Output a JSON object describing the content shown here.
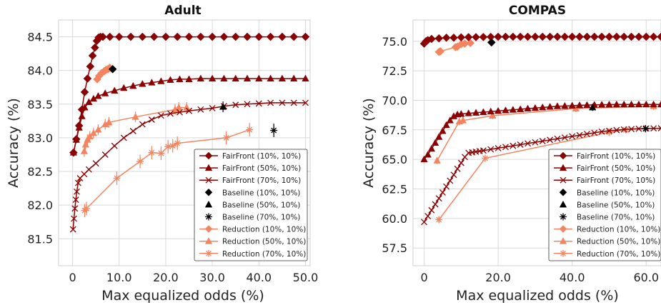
{
  "colors": {
    "fairfront_10": "#8b0000",
    "fairfront_50": "#8b0000",
    "fairfront_70": "#8b0000",
    "baseline": "#000000",
    "reduction": "#f4845f"
  },
  "legend_labels": [
    "FairFront (10%, 10%)",
    "FairFront (50%, 10%)",
    "FairFront (70%, 10%)",
    "Baseline (10%, 10%)",
    "Baseline (50%, 10%)",
    "Baseline (70%, 10%)",
    "Reduction (10%, 10%)",
    "Reduction (50%, 10%)",
    "Reduction (70%, 10%)"
  ],
  "chart_data": [
    {
      "type": "line",
      "title": "Adult",
      "xlabel": "Max equalized odds (%)",
      "ylabel": "Accuracy (%)",
      "xlim": [
        -3,
        51
      ],
      "ylim": [
        81.1,
        84.75
      ],
      "xticks": [
        0,
        10,
        20,
        30,
        40,
        50
      ],
      "xtick_labels": [
        "0",
        "10.0",
        "20.0",
        "30.0",
        "40.0",
        "50.0"
      ],
      "yticks": [
        81.5,
        82.0,
        82.5,
        83.0,
        83.5,
        84.0,
        84.5
      ],
      "ytick_labels": [
        "81.5",
        "82.0",
        "82.5",
        "83.0",
        "83.5",
        "84.0",
        "84.5"
      ],
      "legend": "lower-right",
      "grid": true,
      "series": [
        {
          "name": "FairFront (10%, 10%)",
          "marker": "diamond",
          "x": [
            0.2,
            0.8,
            1.4,
            2.0,
            2.6,
            3.2,
            3.8,
            4.3,
            4.8,
            5.2,
            5.6,
            6.0,
            6.5,
            8,
            10,
            12.5,
            15,
            17.5,
            20,
            22.5,
            25,
            27.5,
            30,
            32.5,
            35,
            37.5,
            40,
            42.5,
            45,
            47.5,
            50
          ],
          "y": [
            82.78,
            82.98,
            83.18,
            83.42,
            83.68,
            83.88,
            84.06,
            84.22,
            84.34,
            84.44,
            84.49,
            84.5,
            84.5,
            84.5,
            84.5,
            84.5,
            84.5,
            84.5,
            84.5,
            84.5,
            84.5,
            84.5,
            84.5,
            84.5,
            84.5,
            84.5,
            84.5,
            84.5,
            84.5,
            84.5,
            84.5
          ]
        },
        {
          "name": "FairFront (50%, 10%)",
          "marker": "triangle",
          "x": [
            0.2,
            0.8,
            1.4,
            2.0,
            2.6,
            3.5,
            4.5,
            5.5,
            7,
            9,
            11,
            13,
            15,
            17,
            19,
            21,
            23,
            25,
            27.5,
            30,
            32.5,
            35,
            37.5,
            40,
            42.5,
            45,
            47.5,
            50
          ],
          "y": [
            82.78,
            82.97,
            83.15,
            83.32,
            83.45,
            83.53,
            83.58,
            83.62,
            83.66,
            83.7,
            83.74,
            83.77,
            83.8,
            83.82,
            83.84,
            83.86,
            83.87,
            83.87,
            83.88,
            83.88,
            83.88,
            83.88,
            83.88,
            83.88,
            83.88,
            83.88,
            83.88,
            83.88
          ]
        },
        {
          "name": "FairFront (70%, 10%)",
          "marker": "x",
          "x": [
            0.1,
            0.3,
            0.5,
            0.7,
            0.9,
            1.2,
            1.6,
            2.5,
            3.5,
            5,
            7,
            9,
            11,
            13,
            15,
            17,
            19,
            21,
            23,
            25,
            27.5,
            30,
            32.5,
            35,
            37.5,
            40,
            42.5,
            45,
            47.5,
            50
          ],
          "y": [
            81.64,
            81.8,
            81.95,
            82.08,
            82.2,
            82.33,
            82.4,
            82.46,
            82.53,
            82.62,
            82.75,
            82.88,
            83.0,
            83.1,
            83.2,
            83.27,
            83.33,
            83.36,
            83.38,
            83.4,
            83.42,
            83.44,
            83.47,
            83.49,
            83.5,
            83.51,
            83.52,
            83.52,
            83.52,
            83.52
          ]
        },
        {
          "name": "Baseline (10%, 10%)",
          "marker": "diamond",
          "x": [
            8.6
          ],
          "y": [
            84.02
          ],
          "yerr": 0.05
        },
        {
          "name": "Baseline (50%, 10%)",
          "marker": "triangle",
          "x": [
            32.3
          ],
          "y": [
            83.46
          ],
          "yerr": 0.08
        },
        {
          "name": "Baseline (70%, 10%)",
          "marker": "star",
          "x": [
            43.2
          ],
          "y": [
            83.11
          ],
          "yerr": 0.1
        },
        {
          "name": "Reduction (10%, 10%)",
          "marker": "diamond",
          "x": [
            5.3,
            5.7,
            6.2,
            6.8,
            7.2,
            7.6,
            8.0
          ],
          "y": [
            83.87,
            83.92,
            83.96,
            83.99,
            84.01,
            84.02,
            84.04
          ],
          "yerr": 0.06
        },
        {
          "name": "Reduction (50%, 10%)",
          "marker": "triangle",
          "x": [
            2.5,
            2.8,
            3.2,
            3.7,
            4.5,
            5.5,
            7.0,
            7.8,
            13.5,
            22.0,
            22.8,
            24.5
          ],
          "y": [
            82.8,
            82.9,
            82.97,
            83.02,
            83.07,
            83.12,
            83.2,
            83.23,
            83.31,
            83.42,
            83.45,
            83.45
          ],
          "yerr": 0.08
        },
        {
          "name": "Reduction (70%, 10%)",
          "marker": "star",
          "x": [
            2.6,
            3.0,
            9.5,
            14.5,
            17.0,
            19.0,
            20.5,
            21.5,
            22.5,
            33.0,
            38.0
          ],
          "y": [
            81.92,
            81.95,
            82.4,
            82.65,
            82.78,
            82.77,
            82.87,
            82.88,
            82.92,
            83.0,
            83.12
          ],
          "yerr": 0.1
        }
      ]
    },
    {
      "type": "line",
      "title": "COMPAS",
      "xlabel": "Max equalized odds (%)",
      "ylabel": "Accuracy (%)",
      "xlim": [
        -3,
        64
      ],
      "ylim": [
        56.0,
        76.8
      ],
      "xticks": [
        0,
        20,
        40,
        60
      ],
      "xtick_labels": [
        "0",
        "20.0",
        "40.0",
        "60.0"
      ],
      "yticks": [
        57.5,
        60.0,
        62.5,
        65.0,
        67.5,
        70.0,
        72.5,
        75.0
      ],
      "ytick_labels": [
        "57.5",
        "60.0",
        "62.5",
        "65.0",
        "67.5",
        "70.0",
        "72.5",
        "75.0"
      ],
      "legend": "lower-right",
      "grid": true,
      "series": [
        {
          "name": "FairFront (10%, 10%)",
          "marker": "diamond",
          "x": [
            0,
            0.5,
            1,
            2,
            4,
            6,
            8,
            10,
            12,
            14,
            16,
            18,
            20,
            22,
            24,
            26,
            28,
            30,
            32,
            34,
            36,
            38,
            40,
            42,
            44,
            46,
            48,
            50,
            52,
            54,
            56,
            58,
            60,
            62,
            64
          ],
          "y": [
            74.8,
            75.0,
            75.1,
            75.2,
            75.25,
            75.3,
            75.3,
            75.33,
            75.35,
            75.35,
            75.36,
            75.37,
            75.38,
            75.38,
            75.38,
            75.38,
            75.38,
            75.38,
            75.38,
            75.38,
            75.38,
            75.38,
            75.38,
            75.38,
            75.38,
            75.38,
            75.38,
            75.38,
            75.38,
            75.38,
            75.38,
            75.38,
            75.38,
            75.38,
            75.38
          ]
        },
        {
          "name": "FairFront (50%, 10%)",
          "marker": "triangle",
          "x": [
            0,
            1,
            2,
            3,
            4,
            5,
            6,
            7,
            8,
            9,
            10,
            12,
            14,
            16,
            18,
            20,
            22,
            24,
            26,
            28,
            30,
            32,
            34,
            36,
            38,
            40,
            42,
            44,
            46,
            48,
            50,
            52,
            54,
            56,
            58,
            60,
            62,
            64
          ],
          "y": [
            65.0,
            65.4,
            65.9,
            66.4,
            66.9,
            67.4,
            67.9,
            68.3,
            68.65,
            68.8,
            68.85,
            68.9,
            68.95,
            69.0,
            69.05,
            69.1,
            69.15,
            69.2,
            69.25,
            69.3,
            69.35,
            69.4,
            69.45,
            69.5,
            69.52,
            69.55,
            69.58,
            69.6,
            69.62,
            69.63,
            69.64,
            69.65,
            69.65,
            69.65,
            69.65,
            69.65,
            69.65,
            69.65
          ]
        },
        {
          "name": "FairFront (70%, 10%)",
          "marker": "x",
          "x": [
            0,
            1,
            2,
            3,
            4,
            5,
            6,
            7,
            8,
            9,
            10,
            11,
            12,
            13,
            14,
            15,
            16,
            18,
            20,
            22,
            24,
            26,
            28,
            30,
            32,
            34,
            36,
            38,
            40,
            42,
            44,
            46,
            48,
            50,
            52,
            54,
            56,
            58,
            60,
            62,
            64
          ],
          "y": [
            59.7,
            60.2,
            60.7,
            61.2,
            61.7,
            62.2,
            62.7,
            63.2,
            63.7,
            64.2,
            64.7,
            65.2,
            65.55,
            65.6,
            65.65,
            65.7,
            65.75,
            65.85,
            65.95,
            66.05,
            66.15,
            66.25,
            66.35,
            66.45,
            66.55,
            66.65,
            66.75,
            66.85,
            66.95,
            67.05,
            67.15,
            67.25,
            67.35,
            67.42,
            67.48,
            67.53,
            67.57,
            67.6,
            67.62,
            67.63,
            67.64
          ]
        },
        {
          "name": "Baseline (10%, 10%)",
          "marker": "diamond",
          "x": [
            18.2
          ],
          "y": [
            74.9
          ],
          "yerr": 0.2
        },
        {
          "name": "Baseline (50%, 10%)",
          "marker": "triangle",
          "x": [
            45.5
          ],
          "y": [
            69.4
          ],
          "yerr": 0.3
        },
        {
          "name": "Baseline (70%, 10%)",
          "marker": "star",
          "x": [
            59.8
          ],
          "y": [
            67.6
          ],
          "yerr": 0.3
        },
        {
          "name": "Reduction (10%, 10%)",
          "marker": "diamond",
          "x": [
            4.0,
            4.4,
            8.5,
            9.0,
            10.0,
            11.0,
            12.5
          ],
          "y": [
            74.1,
            74.15,
            74.5,
            74.55,
            74.75,
            74.8,
            74.85
          ],
          "yerr": 0.25
        },
        {
          "name": "Reduction (50%, 10%)",
          "marker": "triangle",
          "x": [
            3.5,
            9.5,
            10.5,
            18.5,
            41.0,
            62.0
          ],
          "y": [
            64.9,
            68.2,
            68.3,
            68.7,
            69.3,
            69.5
          ],
          "yerr": 0.3
        },
        {
          "name": "Reduction (70%, 10%)",
          "marker": "star",
          "x": [
            4.0,
            16.5,
            50.0,
            54.5
          ],
          "y": [
            59.9,
            65.1,
            67.3,
            67.5
          ],
          "yerr": 0.3
        }
      ]
    }
  ]
}
